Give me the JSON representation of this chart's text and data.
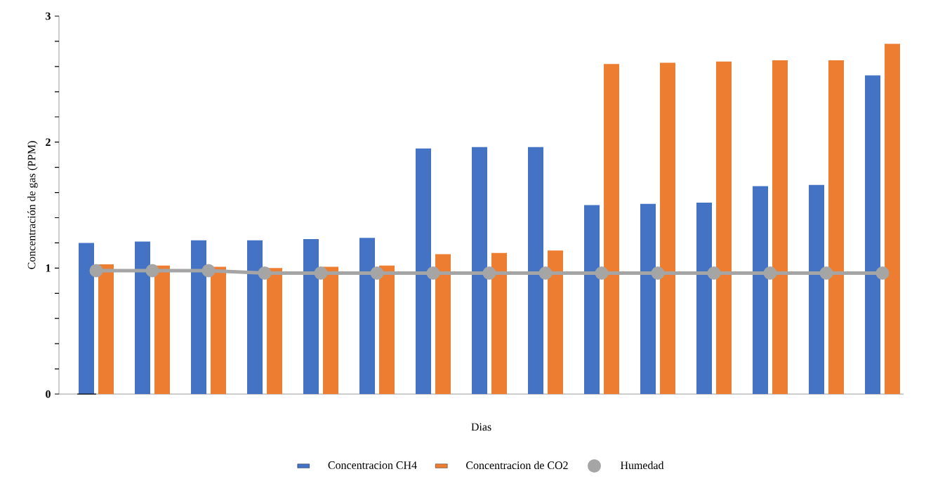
{
  "chart_data": {
    "type": "bar",
    "xlabel": "Dias",
    "ylabel": "Concentración de gas (PPM)",
    "categories": [
      null,
      null,
      null,
      null,
      null,
      null,
      null,
      null,
      null,
      null,
      null,
      null,
      null,
      null,
      null
    ],
    "series": [
      {
        "name": "Concentracion CH4",
        "color": "#4472c4",
        "values": [
          1.2,
          1.21,
          1.22,
          1.22,
          1.23,
          1.24,
          1.95,
          1.96,
          1.96,
          1.5,
          1.51,
          1.52,
          1.65,
          1.66,
          2.53
        ]
      },
      {
        "name": "Concentracion de CO2",
        "color": "#ed7d31",
        "values": [
          1.03,
          1.02,
          1.01,
          1.0,
          1.01,
          1.02,
          1.11,
          1.12,
          1.14,
          2.62,
          2.63,
          2.64,
          2.65,
          2.65,
          2.78
        ]
      },
      {
        "name": "Humedad",
        "type": "line",
        "marker": "circle",
        "color": "#a5a5a5",
        "values": [
          0.98,
          0.98,
          0.98,
          0.96,
          0.96,
          0.96,
          0.96,
          0.96,
          0.96,
          0.96,
          0.96,
          0.96,
          0.96,
          0.96,
          0.96
        ]
      }
    ],
    "ylim": [
      0,
      3
    ],
    "yticks": [
      0,
      {
        "value": 0.2,
        "label": null
      },
      {
        "value": 0.4,
        "label": null
      },
      {
        "value": 0.6,
        "label": null
      },
      {
        "value": 0.8,
        "label": null
      },
      1,
      {
        "value": 1.2,
        "label": null
      },
      {
        "value": 1.4,
        "label": null
      },
      {
        "value": 1.6,
        "label": null
      },
      {
        "value": 1.8,
        "label": null
      },
      2,
      {
        "value": 2.2,
        "label": null
      },
      {
        "value": 2.4,
        "label": null
      },
      {
        "value": 2.6,
        "label": null
      },
      {
        "value": 2.8,
        "label": null
      },
      3
    ],
    "legend": "bottom"
  }
}
